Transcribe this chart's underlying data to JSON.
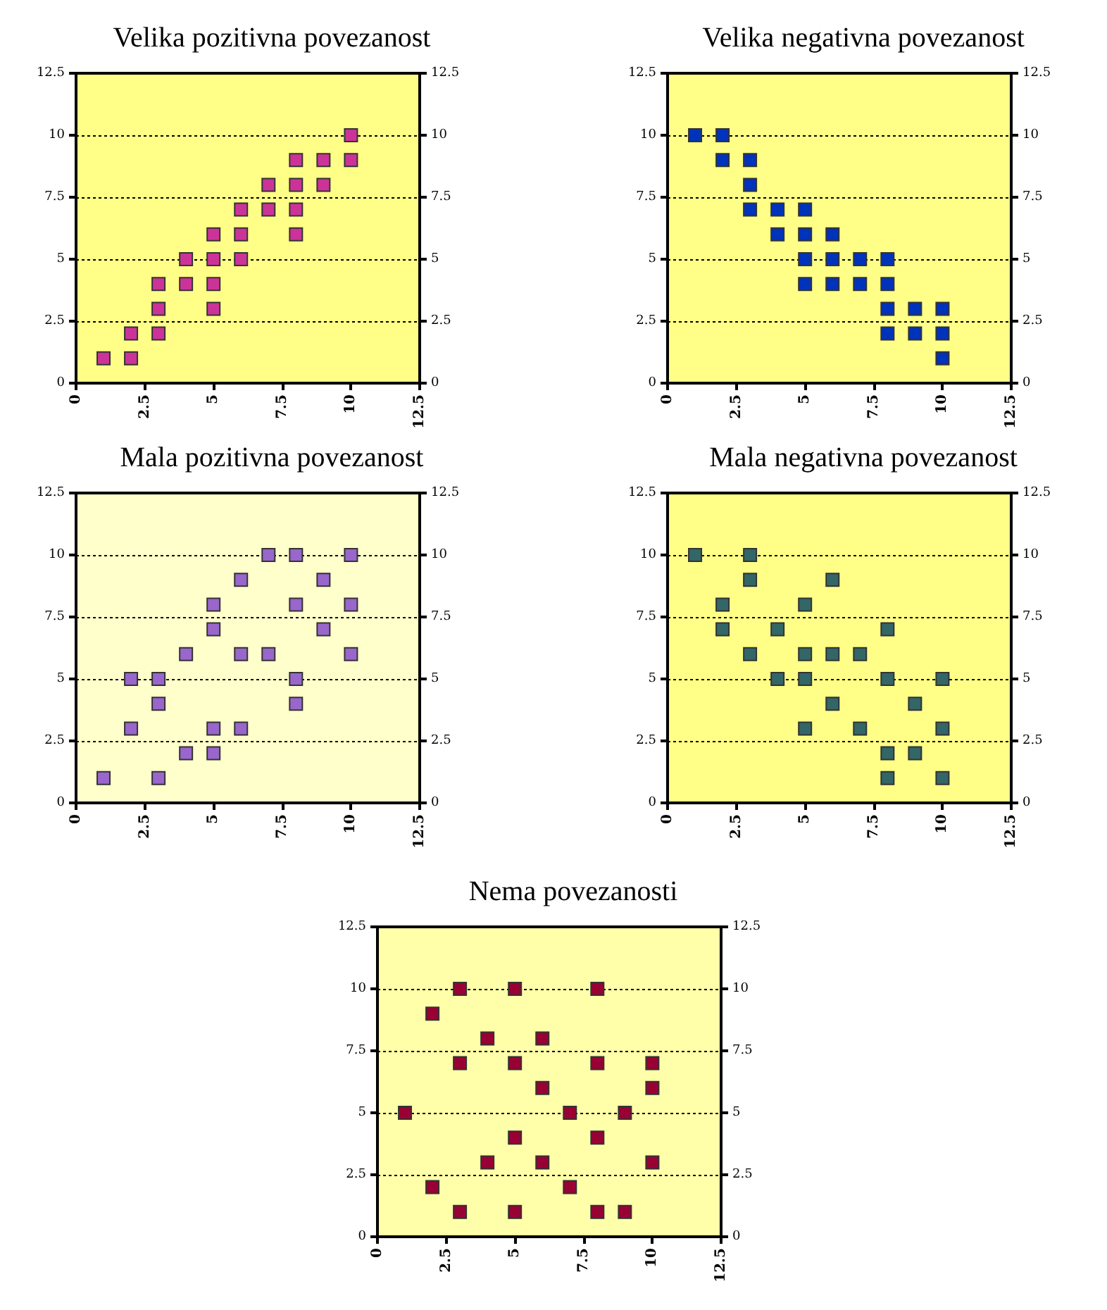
{
  "chart_data": [
    {
      "type": "scatter",
      "title": "Velika pozitivna povezanost",
      "x": [
        1,
        2,
        2,
        3,
        3,
        3,
        4,
        4,
        5,
        5,
        5,
        5,
        6,
        6,
        6,
        7,
        7,
        8,
        8,
        8,
        8,
        9,
        9,
        10,
        10
      ],
      "values": [
        1,
        1,
        2,
        2,
        3,
        4,
        4,
        5,
        3,
        4,
        5,
        6,
        5,
        6,
        7,
        7,
        8,
        6,
        7,
        8,
        9,
        8,
        9,
        9,
        10
      ],
      "color": "#cc3399",
      "xlim": [
        0,
        12.5
      ],
      "xticks": [
        0,
        2.5,
        5,
        7.5,
        10,
        12.5
      ],
      "ylim": [
        0,
        12.5
      ],
      "yticks": [
        0,
        2.5,
        5,
        7.5,
        10,
        12.5
      ],
      "y2lim": [
        0,
        12.5
      ],
      "y2ticks": [
        0,
        2.5,
        5,
        7.5,
        10,
        12.5
      ],
      "grid": "y",
      "marker": "square"
    },
    {
      "type": "scatter",
      "title": "Velika negativna povezanost",
      "x": [
        1,
        2,
        2,
        3,
        3,
        3,
        4,
        4,
        5,
        5,
        5,
        5,
        6,
        6,
        6,
        7,
        7,
        8,
        8,
        8,
        8,
        9,
        9,
        10,
        10,
        10
      ],
      "values": [
        10,
        10,
        9,
        9,
        8,
        7,
        7,
        6,
        7,
        6,
        5,
        4,
        6,
        5,
        4,
        5,
        4,
        5,
        4,
        3,
        2,
        3,
        2,
        3,
        2,
        1
      ],
      "color": "#0033bb",
      "xlim": [
        0,
        12.5
      ],
      "xticks": [
        0,
        2.5,
        5,
        7.5,
        10,
        12.5
      ],
      "ylim": [
        0,
        12.5
      ],
      "yticks": [
        0,
        2.5,
        5,
        7.5,
        10,
        12.5
      ],
      "y2lim": [
        0,
        12.5
      ],
      "y2ticks": [
        0,
        2.5,
        5,
        7.5,
        10,
        12.5
      ],
      "grid": "y",
      "marker": "square"
    },
    {
      "type": "scatter",
      "title": "Mala pozitivna povezanost",
      "x": [
        1,
        2,
        2,
        3,
        3,
        3,
        4,
        4,
        5,
        5,
        5,
        5,
        6,
        6,
        6,
        7,
        7,
        8,
        8,
        8,
        8,
        9,
        9,
        10,
        10,
        10
      ],
      "values": [
        1,
        3,
        5,
        1,
        4,
        5,
        2,
        6,
        2,
        3,
        7,
        8,
        3,
        6,
        9,
        6,
        10,
        10,
        8,
        5,
        4,
        9,
        7,
        10,
        8,
        6
      ],
      "color": "#9966cc",
      "xlim": [
        0,
        12.5
      ],
      "xticks": [
        0,
        2.5,
        5,
        7.5,
        10,
        12.5
      ],
      "ylim": [
        0,
        12.5
      ],
      "yticks": [
        0,
        2.5,
        5,
        7.5,
        10,
        12.5
      ],
      "y2lim": [
        0,
        12.5
      ],
      "y2ticks": [
        0,
        2.5,
        5,
        7.5,
        10,
        12.5
      ],
      "grid": "y",
      "marker": "square"
    },
    {
      "type": "scatter",
      "title": "Mala negativna povezanost",
      "x": [
        1,
        2,
        2,
        3,
        3,
        3,
        4,
        4,
        5,
        5,
        5,
        5,
        6,
        6,
        6,
        7,
        7,
        8,
        8,
        8,
        8,
        9,
        9,
        10,
        10,
        10
      ],
      "values": [
        10,
        8,
        7,
        10,
        9,
        6,
        7,
        5,
        8,
        6,
        5,
        3,
        9,
        6,
        4,
        6,
        3,
        7,
        5,
        2,
        1,
        4,
        2,
        5,
        3,
        1
      ],
      "color": "#336666",
      "xlim": [
        0,
        12.5
      ],
      "xticks": [
        0,
        2.5,
        5,
        7.5,
        10,
        12.5
      ],
      "ylim": [
        0,
        12.5
      ],
      "yticks": [
        0,
        2.5,
        5,
        7.5,
        10,
        12.5
      ],
      "y2lim": [
        0,
        12.5
      ],
      "y2ticks": [
        0,
        2.5,
        5,
        7.5,
        10,
        12.5
      ],
      "grid": "y",
      "marker": "square"
    },
    {
      "type": "scatter",
      "title": "Nema povezanosti",
      "x": [
        1,
        2,
        2,
        3,
        3,
        3,
        4,
        4,
        5,
        5,
        5,
        5,
        6,
        6,
        6,
        7,
        7,
        8,
        8,
        8,
        8,
        9,
        9,
        10,
        10,
        10
      ],
      "values": [
        5,
        9,
        2,
        10,
        7,
        1,
        8,
        3,
        10,
        7,
        4,
        1,
        8,
        6,
        3,
        5,
        2,
        10,
        7,
        4,
        1,
        5,
        1,
        7,
        6,
        3
      ],
      "color": "#990033",
      "xlim": [
        0,
        12.5
      ],
      "xticks": [
        0,
        2.5,
        5,
        7.5,
        10,
        12.5
      ],
      "ylim": [
        0,
        12.5
      ],
      "yticks": [
        0,
        2.5,
        5,
        7.5,
        10,
        12.5
      ],
      "y2lim": [
        0,
        12.5
      ],
      "y2ticks": [
        0,
        2.5,
        5,
        7.5,
        10,
        12.5
      ],
      "grid": "y",
      "marker": "square"
    }
  ]
}
